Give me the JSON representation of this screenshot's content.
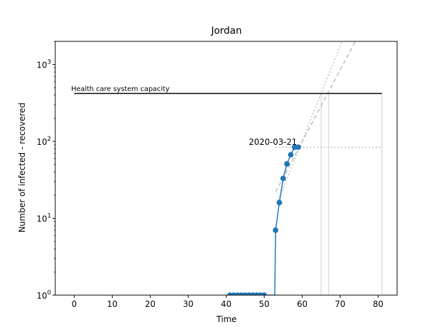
{
  "chart_data": {
    "type": "line",
    "title": "Jordan",
    "xlabel": "Time",
    "ylabel": "Number of infected - recovered",
    "xlim": [
      -5,
      85
    ],
    "ylim": [
      1,
      2000
    ],
    "yscale": "log",
    "x_ticks": [
      0,
      10,
      20,
      30,
      40,
      50,
      60,
      70,
      80
    ],
    "y_ticks": [
      {
        "value": 1,
        "base": "10",
        "exp": "0"
      },
      {
        "value": 10,
        "base": "10",
        "exp": "1"
      },
      {
        "value": 100,
        "base": "10",
        "exp": "2"
      },
      {
        "value": 1000,
        "base": "10",
        "exp": "3"
      }
    ],
    "grid": false,
    "series": [
      {
        "color": "#1f77b4",
        "points": [
          [
            41,
            1
          ],
          [
            42,
            1
          ],
          [
            43,
            1
          ],
          [
            44,
            1
          ],
          [
            45,
            1
          ],
          [
            46,
            1
          ],
          [
            47,
            1
          ],
          [
            48,
            1
          ],
          [
            49,
            1
          ],
          [
            50,
            1
          ],
          [
            53,
            7
          ],
          [
            54,
            16
          ],
          [
            55,
            33
          ],
          [
            56,
            51
          ],
          [
            57,
            67
          ],
          [
            58,
            84
          ],
          [
            59,
            84
          ]
        ]
      }
    ],
    "step_line": [
      [
        41,
        1
      ],
      [
        50,
        1
      ],
      [
        50.3,
        0.5
      ],
      [
        52.8,
        0.5
      ],
      [
        53,
        7
      ]
    ],
    "capacity": {
      "label": "Health care system capacity",
      "value": 420,
      "x": [
        0,
        81
      ]
    },
    "annotation": {
      "label": "2020-03-21",
      "x": 59,
      "y": 84
    },
    "fit_lines": [
      {
        "style": "dashed",
        "x": [
          53,
          74
        ],
        "y": [
          22,
          2000
        ]
      },
      {
        "style": "dotted",
        "x": [
          53,
          70.5
        ],
        "y": [
          14,
          2000
        ]
      }
    ],
    "reference_horizontal": {
      "x": [
        53,
        81
      ],
      "y": 84
    },
    "reference_verticals": [
      65,
      67,
      81
    ]
  }
}
